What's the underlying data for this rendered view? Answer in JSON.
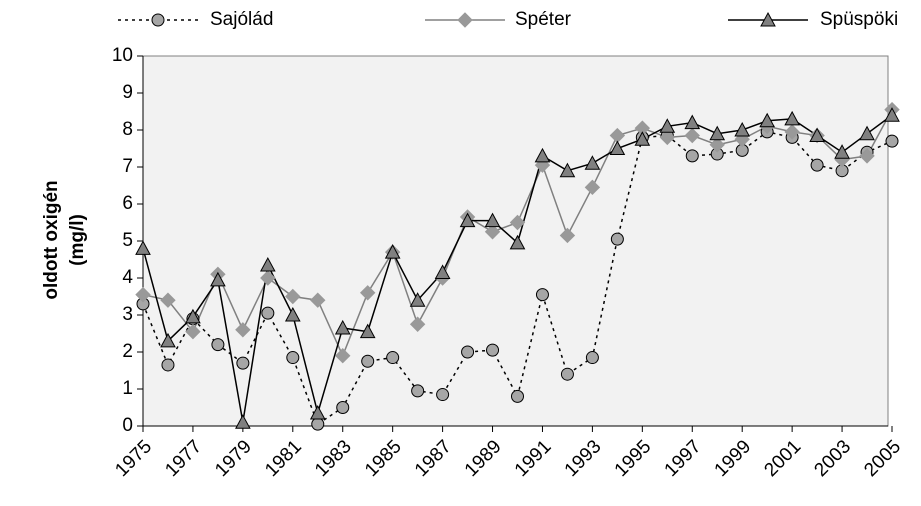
{
  "chart_data": {
    "type": "line",
    "ylabel_lines": [
      "oldott oxigén",
      "(mg/l)"
    ],
    "x": [
      1975,
      1976,
      1977,
      1978,
      1979,
      1980,
      1981,
      1982,
      1983,
      1984,
      1985,
      1986,
      1987,
      1988,
      1989,
      1990,
      1991,
      1992,
      1993,
      1994,
      1995,
      1996,
      1997,
      1998,
      1999,
      2000,
      2001,
      2002,
      2003,
      2004,
      2005
    ],
    "xlim": [
      1975,
      2005
    ],
    "xticks": [
      1975,
      1977,
      1979,
      1981,
      1983,
      1985,
      1987,
      1989,
      1991,
      1993,
      1995,
      1997,
      1999,
      2001,
      2003,
      2005
    ],
    "ylim": [
      0,
      10
    ],
    "yticks": [
      0,
      1,
      2,
      3,
      4,
      5,
      6,
      7,
      8,
      9,
      10
    ],
    "grid": false,
    "series": [
      {
        "name": "Sajólád",
        "color": "#000000",
        "marker_color": "#a6a6a6",
        "marker": "circle",
        "dash": true,
        "values": [
          3.3,
          1.65,
          2.9,
          2.2,
          1.7,
          3.05,
          1.85,
          0.05,
          0.5,
          1.75,
          1.85,
          0.95,
          0.85,
          2.0,
          2.05,
          0.8,
          3.55,
          1.4,
          1.85,
          5.05,
          7.8,
          7.85,
          7.3,
          7.35,
          7.45,
          7.95,
          7.8,
          7.05,
          6.9,
          7.4,
          7.7
        ]
      },
      {
        "name": "Spéter",
        "color": "#808080",
        "marker_color": "#999999",
        "marker": "diamond",
        "dash": false,
        "values": [
          3.55,
          3.4,
          2.55,
          4.1,
          2.6,
          4.0,
          3.5,
          3.4,
          1.9,
          3.6,
          4.7,
          2.75,
          4.0,
          5.65,
          5.25,
          5.5,
          7.05,
          5.15,
          6.45,
          7.85,
          8.05,
          7.8,
          7.85,
          7.6,
          7.75,
          8.1,
          7.95,
          7.85,
          7.2,
          7.3,
          8.55
        ]
      },
      {
        "name": "Spüspöki",
        "color": "#000000",
        "marker_color": "#808080",
        "marker": "triangle",
        "dash": false,
        "values": [
          4.8,
          2.3,
          2.95,
          3.95,
          0.1,
          4.35,
          3.0,
          0.35,
          2.65,
          2.55,
          4.7,
          3.4,
          4.15,
          5.55,
          5.55,
          4.95,
          7.3,
          6.9,
          7.1,
          7.5,
          7.75,
          8.1,
          8.2,
          7.9,
          8.0,
          8.25,
          8.3,
          7.85,
          7.4,
          7.9,
          8.4
        ]
      }
    ]
  }
}
